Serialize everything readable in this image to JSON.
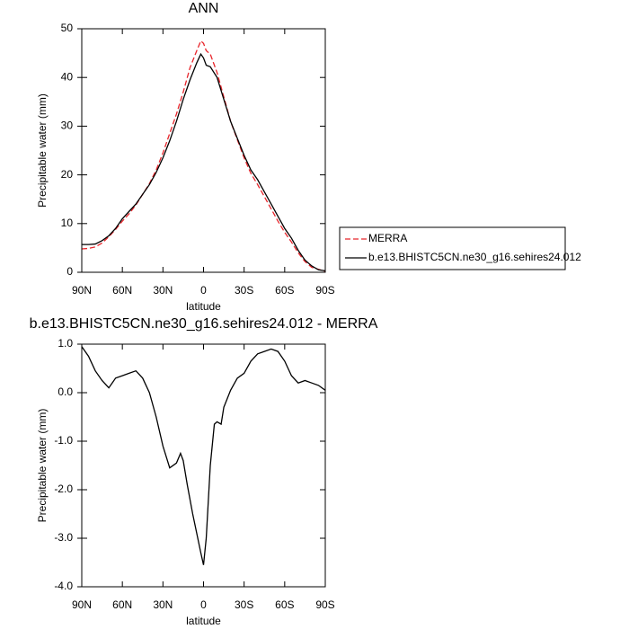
{
  "chart_data": [
    {
      "type": "line",
      "title": "ANN",
      "xlabel": "latitude",
      "ylabel": "Precipitable water (mm)",
      "x": [
        90,
        85,
        80,
        75,
        70,
        65,
        60,
        55,
        50,
        45,
        40,
        35,
        30,
        25,
        20,
        15,
        10,
        5,
        2,
        0,
        -2,
        -5,
        -10,
        -15,
        -20,
        -25,
        -30,
        -35,
        -40,
        -45,
        -50,
        -55,
        -60,
        -65,
        -70,
        -75,
        -80,
        -85,
        -90
      ],
      "series": [
        {
          "name": "MERRA",
          "color": "#e8252b",
          "line_style": "dashed",
          "values": [
            4.8,
            4.9,
            5.2,
            6,
            7.3,
            8.8,
            10.5,
            12,
            13.8,
            16,
            18.2,
            21,
            24.5,
            28.5,
            32.5,
            37,
            42,
            45.5,
            47.5,
            47,
            45.5,
            44.8,
            41,
            36,
            31,
            27.2,
            23.5,
            20.3,
            18,
            15.5,
            13,
            10.5,
            8.2,
            6.2,
            4,
            2.2,
            1,
            0.6,
            0.2
          ]
        },
        {
          "name": "b.e13.BHISTC5CN.ne30_g16.sehires24.012",
          "color": "#000000",
          "line_style": "solid",
          "values": [
            5.7,
            5.7,
            5.8,
            6.5,
            7.5,
            9,
            11,
            12.5,
            14,
            16,
            18,
            20.5,
            23.5,
            27,
            31,
            35.5,
            39.5,
            43,
            44.8,
            44,
            42.5,
            42.2,
            40,
            35.5,
            31,
            27.5,
            24,
            21,
            19,
            16.5,
            14,
            11.5,
            9,
            7,
            4.5,
            2.5,
            1.3,
            0.5,
            0.3
          ]
        }
      ],
      "xlim": [
        90,
        -90
      ],
      "xticks": [
        {
          "value": 90,
          "label": "90N"
        },
        {
          "value": 60,
          "label": "60N"
        },
        {
          "value": 30,
          "label": "30N"
        },
        0,
        {
          "value": -30,
          "label": "30S"
        },
        {
          "value": -60,
          "label": "60S"
        },
        {
          "value": -90,
          "label": "90S"
        }
      ],
      "ylim": [
        0,
        50
      ],
      "yticks": [
        0,
        10,
        20,
        30,
        40,
        50
      ],
      "legend": "right"
    },
    {
      "type": "line",
      "title": "b.e13.BHISTC5CN.ne30_g16.sehires24.012 - MERRA",
      "xlabel": "latitude",
      "ylabel": "Precipitable water (mm)",
      "x": [
        90,
        85,
        80,
        75,
        70,
        65,
        60,
        55,
        50,
        45,
        40,
        35,
        30,
        25,
        20,
        17,
        15,
        12,
        8,
        5,
        2,
        0,
        -2,
        -5,
        -8,
        -10,
        -13,
        -15,
        -20,
        -25,
        -30,
        -35,
        -40,
        -45,
        -50,
        -55,
        -60,
        -65,
        -70,
        -75,
        -80,
        -85,
        -90
      ],
      "series": [
        {
          "color": "#000000",
          "line_style": "solid",
          "values": [
            0.95,
            0.75,
            0.45,
            0.25,
            0.1,
            0.3,
            0.35,
            0.4,
            0.45,
            0.3,
            0,
            -0.5,
            -1.1,
            -1.55,
            -1.45,
            -1.25,
            -1.4,
            -1.9,
            -2.5,
            -2.9,
            -3.3,
            -3.55,
            -3.0,
            -1.5,
            -0.65,
            -0.6,
            -0.65,
            -0.3,
            0.05,
            0.3,
            0.4,
            0.65,
            0.8,
            0.85,
            0.9,
            0.85,
            0.65,
            0.35,
            0.2,
            0.25,
            0.2,
            0.15,
            0.05
          ]
        }
      ],
      "xlim": [
        90,
        -90
      ],
      "xticks": [
        {
          "value": 90,
          "label": "90N"
        },
        {
          "value": 60,
          "label": "60N"
        },
        {
          "value": 30,
          "label": "30N"
        },
        0,
        {
          "value": -30,
          "label": "30S"
        },
        {
          "value": -60,
          "label": "60S"
        },
        {
          "value": -90,
          "label": "90S"
        }
      ],
      "ylim": [
        -4,
        1
      ],
      "yticks": [
        {
          "value": -4,
          "label": "-4.0"
        },
        {
          "value": -3,
          "label": "-3.0"
        },
        {
          "value": -2,
          "label": "-2.0"
        },
        {
          "value": -1,
          "label": "-1.0"
        },
        {
          "value": 0,
          "label": "0.0"
        },
        {
          "value": 1,
          "label": "1.0"
        }
      ]
    }
  ]
}
